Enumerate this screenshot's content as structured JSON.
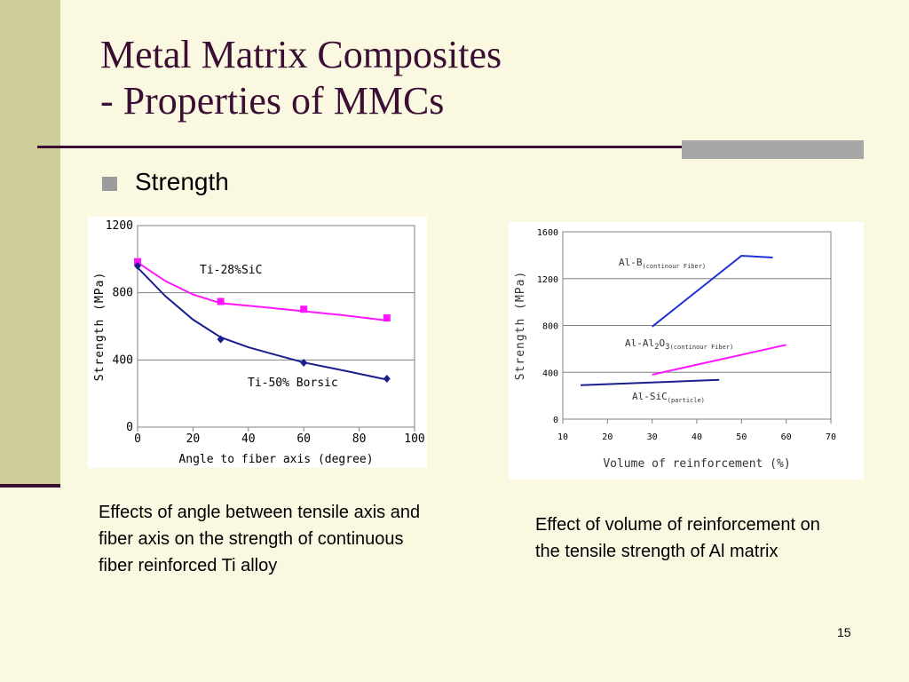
{
  "slide": {
    "title_line1": "Metal Matrix Composites",
    "title_line2": "- Properties of MMCs",
    "bullet": "Strength",
    "caption_left": "Effects of angle between tensile axis and fiber axis on the strength of continuous fiber reinforced Ti alloy",
    "caption_right": "Effect of volume of reinforcement on the tensile strength of Al matrix",
    "page_number": "15"
  },
  "colors": {
    "title": "#3b0f33",
    "sidebar": "#cfcd9a",
    "accent_bar": "#a7a7a7",
    "magenta": "#ff16ff",
    "navy": "#1a1f8f",
    "blue": "#1f2fd6"
  },
  "chart_data": [
    {
      "type": "line",
      "xlabel": "Angle to fiber axis (degree)",
      "ylabel": "Strength (MPa)",
      "xlim": [
        0,
        100
      ],
      "ylim": [
        0,
        1200
      ],
      "xticks": [
        0,
        20,
        40,
        60,
        80,
        100
      ],
      "yticks": [
        0,
        400,
        800,
        1200
      ],
      "grid": "horizontal",
      "series": [
        {
          "name": "Ti-28%SiC",
          "color": "#ff16ff",
          "marker": "square",
          "points": [
            [
              0,
              985
            ],
            [
              30,
              748
            ],
            [
              60,
              702
            ],
            [
              90,
              650
            ]
          ],
          "curve": [
            [
              0,
              980
            ],
            [
              10,
              870
            ],
            [
              20,
              790
            ],
            [
              30,
              738
            ],
            [
              45,
              715
            ],
            [
              60,
              690
            ],
            [
              75,
              665
            ],
            [
              90,
              635
            ]
          ]
        },
        {
          "name": "Ti-50% Borsic",
          "color": "#1a1f8f",
          "marker": "diamond",
          "points": [
            [
              0,
              960
            ],
            [
              30,
              523
            ],
            [
              60,
              383
            ],
            [
              90,
              288
            ]
          ],
          "curve": [
            [
              0,
              950
            ],
            [
              10,
              780
            ],
            [
              20,
              640
            ],
            [
              30,
              535
            ],
            [
              40,
              475
            ],
            [
              50,
              430
            ],
            [
              60,
              385
            ],
            [
              75,
              335
            ],
            [
              90,
              283
            ]
          ]
        }
      ]
    },
    {
      "type": "line",
      "xlabel": "Volume of reinforcement (%)",
      "ylabel": "Strength (MPa)",
      "xlim": [
        10,
        70
      ],
      "ylim": [
        0,
        1600
      ],
      "xticks": [
        10,
        20,
        30,
        40,
        50,
        60,
        70
      ],
      "yticks": [
        0,
        400,
        800,
        1200,
        1600
      ],
      "grid": "horizontal",
      "series": [
        {
          "name": "Al-B",
          "subscript": "(continour Fiber)",
          "color": "#1f2fd6",
          "points": [
            [
              30,
              790
            ],
            [
              50,
              1395
            ],
            [
              57,
              1380
            ]
          ]
        },
        {
          "name": "Al-Al2O3",
          "subscript": "(continour Fiber)",
          "color": "#ff16ff",
          "points": [
            [
              30,
              380
            ],
            [
              60,
              635
            ]
          ]
        },
        {
          "name": "Al-SiC",
          "subscript": "(particle)",
          "color": "#1a1f8f",
          "points": [
            [
              14,
              290
            ],
            [
              45,
              335
            ]
          ]
        }
      ]
    }
  ]
}
